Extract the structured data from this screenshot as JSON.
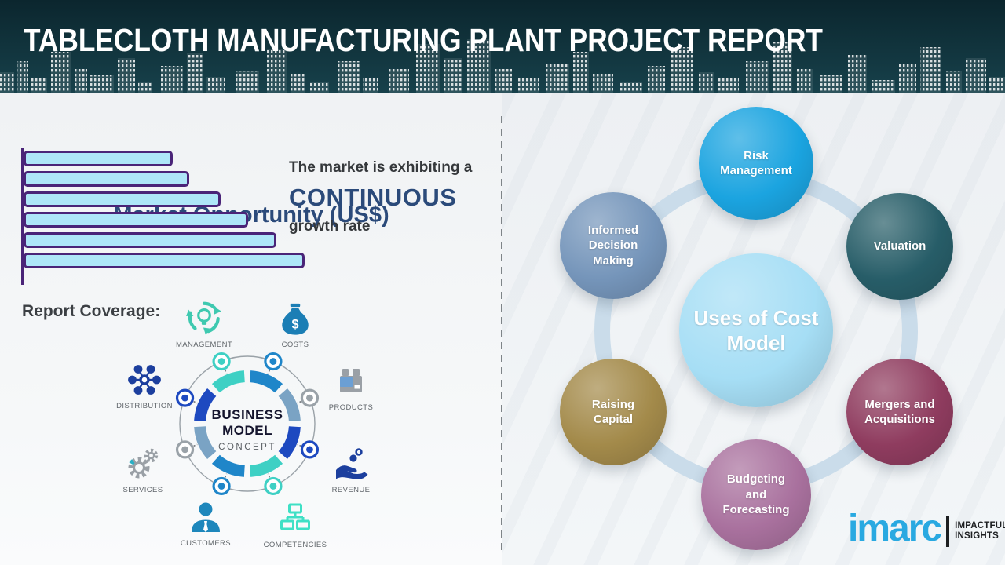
{
  "header": {
    "title": "TABLECLOTH MANUFACTURING PLANT PROJECT REPORT"
  },
  "palette": {
    "header_dark": "#0b262e",
    "header_mid": "#17414b",
    "navy_heading": "#2b4a7a",
    "bar_fill": "#aee6f8",
    "bar_border": "#4a2478",
    "teal": "#3ed0c4",
    "blue": "#1f86c9",
    "royal_blue": "#1d49c0",
    "steel_blue": "#7aa3c4",
    "node_gray": "#9aa2a8",
    "icon_blue": "#1b7eb5",
    "icon_navy": "#1c3f9e",
    "icon_teal": "#3fe0c5",
    "icon_gray": "#9aa0a6",
    "customer_blue": "#1e87bc",
    "ring": "#cadcea",
    "imarc_blue": "#29a9e1",
    "divider_gray": "#7e8488"
  },
  "left_panel": {
    "chart_title": "Market Opportunity (US$)",
    "growth_line1": "The market is exhibiting a",
    "growth_line2": "CONTINUOUS",
    "growth_line3": "growth rate",
    "report_coverage_label": "Report Coverage:",
    "coverage_items": [
      {
        "icon": "management-cycle-icon",
        "label": "MANAGEMENT"
      },
      {
        "icon": "money-bag-icon",
        "label": "COSTS"
      },
      {
        "icon": "distribution-network-icon",
        "label": "DISTRIBUTION"
      },
      {
        "icon": "product-box-icon",
        "label": "PRODUCTS"
      },
      {
        "icon": "services-gears-icon",
        "label": "SERVICES"
      },
      {
        "icon": "revenue-hand-icon",
        "label": "REVENUE"
      },
      {
        "icon": "customer-person-icon",
        "label": "CUSTOMERS"
      },
      {
        "icon": "competencies-org-icon",
        "label": "COMPETENCIES"
      }
    ],
    "business_model": {
      "word1": "BUSINESS",
      "word2": "MODEL",
      "word3": "CONCEPT"
    }
  },
  "chart_data": {
    "type": "bar",
    "orientation": "horizontal",
    "title": "Market Opportunity (US$)",
    "values": [
      53,
      59,
      70,
      80,
      90,
      100
    ],
    "value_note": "relative bar lengths; no axis tick labels shown",
    "annotation": "The market is exhibiting a CONTINUOUS growth rate",
    "grid": false,
    "legend": false
  },
  "right_panel": {
    "center_circle": {
      "label": "Uses of Cost Model",
      "color": "#a6def5"
    },
    "circles": [
      {
        "id": "risk-management",
        "label": "Risk Management",
        "color": "#1ba4e0"
      },
      {
        "id": "informed-decision-making",
        "label": "Informed Decision Making",
        "color": "#7595ba"
      },
      {
        "id": "valuation",
        "label": "Valuation",
        "color": "#275d68"
      },
      {
        "id": "raising-capital",
        "label": "Raising Capital",
        "color": "#a38a4a"
      },
      {
        "id": "mergers-acquisitions",
        "label": "Mergers and Acquisitions",
        "color": "#8f3c5f"
      },
      {
        "id": "budgeting-forecasting",
        "label": "Budgeting and Forecasting",
        "color": "#a9719e"
      }
    ]
  },
  "footer_logo": {
    "brand": "imarc",
    "tagline_line1": "IMPACTFUL",
    "tagline_line2": "INSIGHTS"
  }
}
